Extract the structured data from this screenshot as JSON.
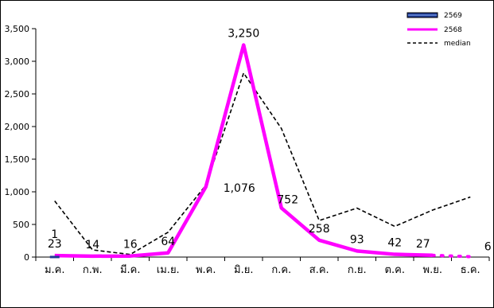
{
  "chart_data": {
    "type": "line",
    "categories": [
      "ม.ค.",
      "ก.พ.",
      "มี.ค.",
      "เม.ย.",
      "พ.ค.",
      "มิ.ย.",
      "ก.ค.",
      "ส.ค.",
      "ก.ย.",
      "ต.ค.",
      "พ.ย.",
      "ธ.ค."
    ],
    "ylim": [
      0,
      3500
    ],
    "yticks": [
      0,
      500,
      1000,
      1500,
      2000,
      2500,
      3000,
      3500
    ],
    "ytick_labels": [
      "0",
      "500",
      "1,000",
      "1,500",
      "2,000",
      "2,500",
      "3,000",
      "3,500"
    ],
    "grid": false,
    "legend_position": "top-right",
    "series": [
      {
        "name": "2569",
        "values": [
          1,
          null,
          null,
          null,
          null,
          null,
          null,
          null,
          null,
          null,
          null,
          null
        ],
        "color": "#1f3a93",
        "style": "thick-double"
      },
      {
        "name": "2568",
        "values": [
          23,
          14,
          16,
          64,
          1076,
          3250,
          752,
          258,
          93,
          42,
          27,
          6
        ],
        "color": "#ff00ff",
        "style": "solid",
        "labels": [
          "23",
          "14",
          "16",
          "64",
          "1,076",
          "3,250",
          "752",
          "258",
          "93",
          "42",
          "27",
          "6"
        ]
      },
      {
        "name": "median",
        "values": [
          860,
          110,
          40,
          380,
          1100,
          2820,
          1970,
          560,
          750,
          470,
          720,
          920
        ],
        "color": "#000000",
        "style": "dashed"
      }
    ],
    "annotations": [
      "1"
    ]
  }
}
